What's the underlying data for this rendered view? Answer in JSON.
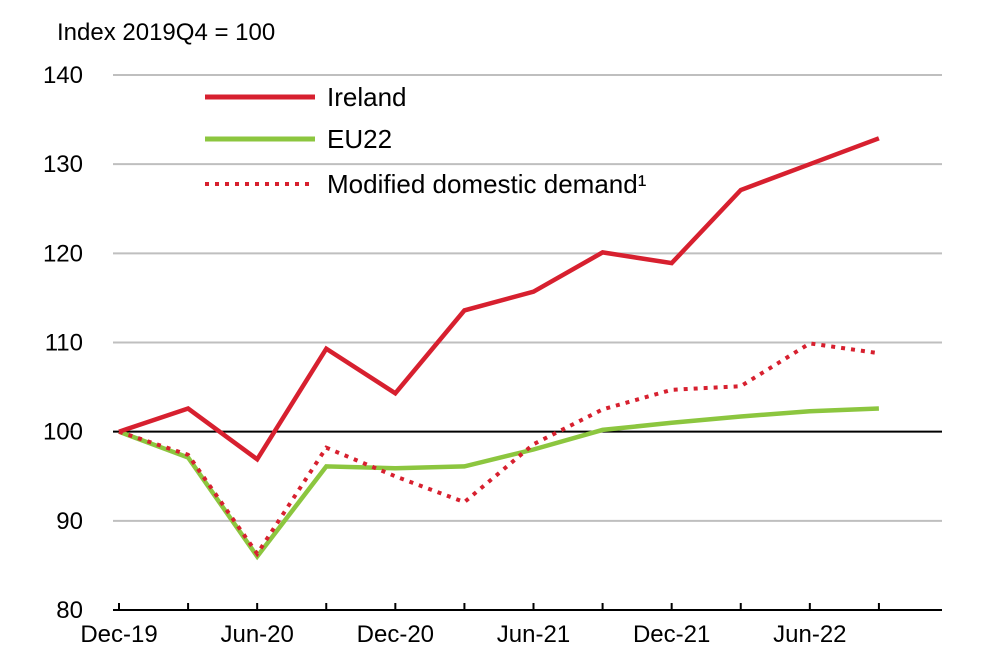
{
  "chart_data": {
    "type": "line",
    "title": "",
    "ylabel": "Index 2019Q4 = 100",
    "xlabel": "",
    "ylim": [
      80,
      140
    ],
    "yticks": [
      80,
      90,
      100,
      110,
      120,
      130,
      140
    ],
    "grid": true,
    "reference_line": 100,
    "x": [
      "2019Q4",
      "2020Q1",
      "2020Q2",
      "2020Q3",
      "2020Q4",
      "2021Q1",
      "2021Q2",
      "2021Q3",
      "2021Q4",
      "2022Q1",
      "2022Q2",
      "2022Q3"
    ],
    "x_tick_labels": [
      "Dec-19",
      "",
      "Jun-20",
      "",
      "Dec-20",
      "",
      "Jun-21",
      "",
      "Dec-21",
      "",
      "Jun-22",
      ""
    ],
    "legend_position": "top-left",
    "series": [
      {
        "name": "Ireland",
        "style": "solid",
        "color": "#D7202F",
        "values": [
          100,
          102.6,
          96.9,
          109.3,
          104.3,
          113.6,
          115.7,
          120.1,
          118.9,
          127.1,
          130.0,
          132.9
        ]
      },
      {
        "name": "EU22",
        "style": "solid",
        "color": "#8CC63F",
        "values": [
          100,
          97.1,
          86.0,
          96.1,
          95.9,
          96.1,
          98.0,
          100.2,
          101.0,
          101.7,
          102.3,
          102.6
        ]
      },
      {
        "name": "Modified domestic demand¹",
        "style": "dotted",
        "color": "#D7202F",
        "values": [
          100,
          97.4,
          86.3,
          98.2,
          95.0,
          92.1,
          98.6,
          102.5,
          104.7,
          105.1,
          109.9,
          108.8
        ]
      }
    ]
  }
}
